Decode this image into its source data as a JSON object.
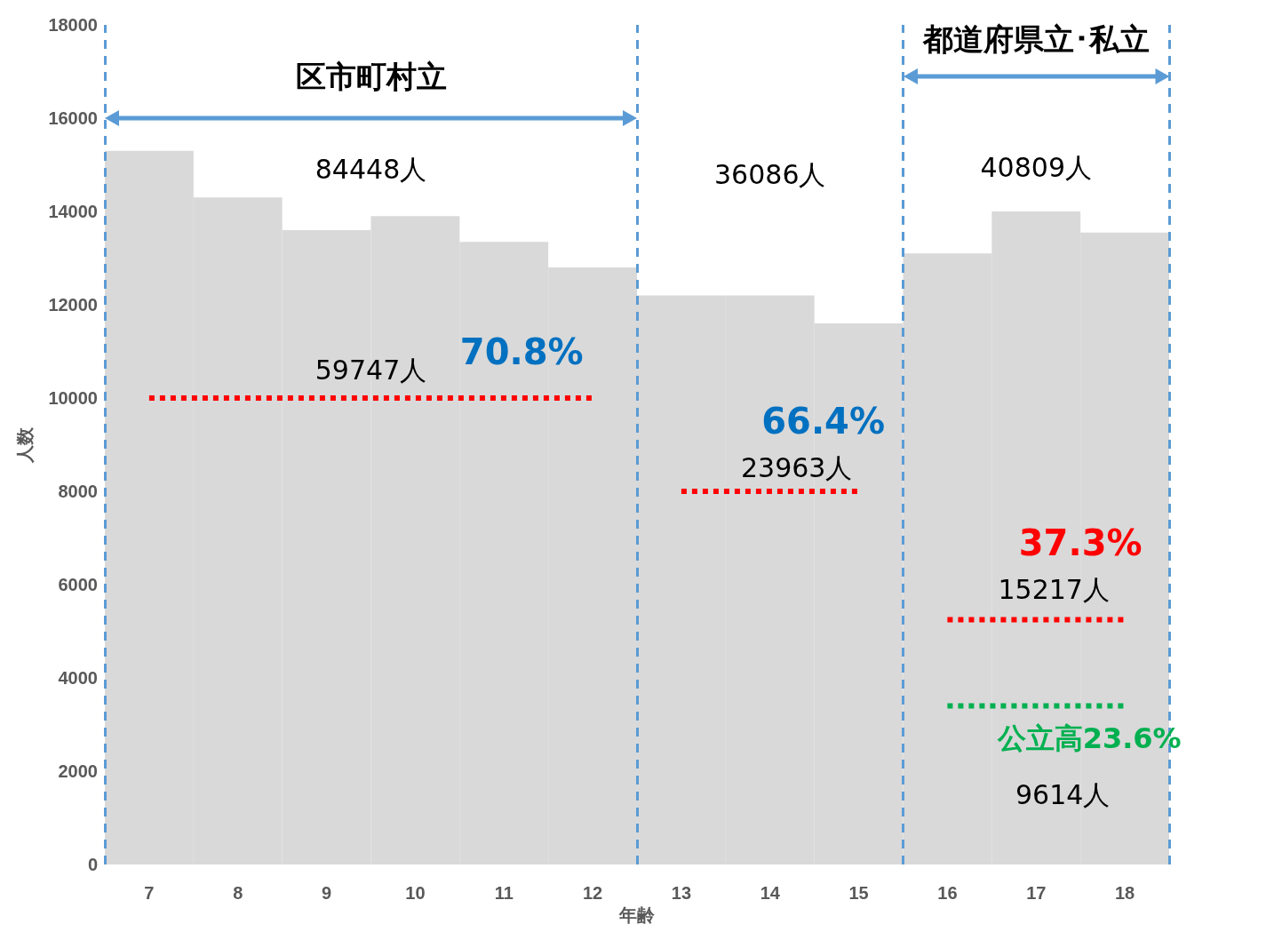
{
  "chart_data": {
    "type": "bar",
    "xlabel": "年齢",
    "ylabel": "人数",
    "x": [
      7,
      8,
      9,
      10,
      11,
      12,
      13,
      14,
      15,
      16,
      17,
      18
    ],
    "xlim": [
      6.5,
      18.5
    ],
    "xticks": [
      7,
      8,
      9,
      10,
      11,
      12,
      13,
      14,
      15,
      16,
      17,
      18
    ],
    "ylim": [
      0,
      18000
    ],
    "yticks": [
      0,
      2000,
      4000,
      6000,
      8000,
      10000,
      12000,
      14000,
      16000,
      18000
    ],
    "grid": false,
    "marker": "none",
    "series": [
      {
        "color": "#d9d9d9",
        "values": [
          15300,
          14300,
          13600,
          13900,
          13350,
          12800,
          12200,
          12200,
          11600,
          13100,
          14000,
          13550
        ]
      },
      {
        "type": "line",
        "x": [
          7,
          12
        ],
        "values": [
          10000,
          10000
        ],
        "color": "#ff0000",
        "line_style": "dotted"
      },
      {
        "type": "line",
        "x": [
          13,
          15
        ],
        "values": [
          8000,
          8000
        ],
        "color": "#ff0000",
        "line_style": "dotted"
      },
      {
        "type": "line",
        "x": [
          16,
          18
        ],
        "values": [
          5250,
          5250
        ],
        "color": "#ff0000",
        "line_style": "dotted"
      },
      {
        "type": "line",
        "x": [
          16,
          18
        ],
        "values": [
          3400,
          3400
        ],
        "color": "#00b050",
        "line_style": "dotted"
      }
    ],
    "ref_lines": [
      {
        "axis": "x",
        "value": 6.5,
        "color": "#5b9bd5",
        "line_style": "dashed"
      },
      {
        "axis": "x",
        "value": 12.5,
        "color": "#5b9bd5",
        "line_style": "dashed"
      },
      {
        "axis": "x",
        "value": 15.5,
        "color": "#5b9bd5",
        "line_style": "dashed"
      },
      {
        "axis": "x",
        "value": 18.5,
        "color": "#5b9bd5",
        "line_style": "dashed"
      }
    ],
    "annotations": [
      "区市町村立",
      "都道府県立･私立",
      "84448人",
      "36086人",
      "40809人",
      "59747人",
      "70.8%",
      "66.4%",
      "23963人",
      "37.3%",
      "15217人",
      "公立高23.6%",
      "9614人"
    ]
  }
}
